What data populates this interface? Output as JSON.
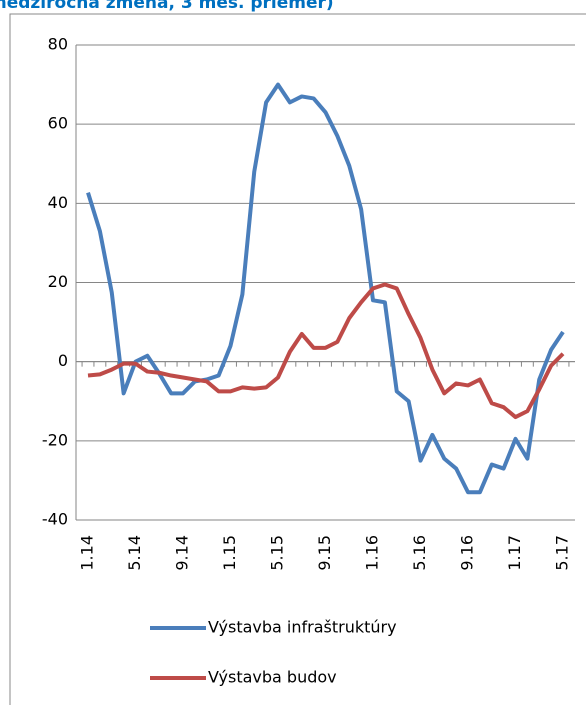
{
  "chart_data": {
    "type": "line",
    "title": "medziročná zmena, 3 mes. priemer)",
    "categories": [
      "1.14",
      null,
      null,
      null,
      "5.14",
      null,
      null,
      null,
      "9.14",
      null,
      null,
      null,
      "1.15",
      null,
      null,
      null,
      "5.15",
      null,
      null,
      null,
      "9.15",
      null,
      null,
      null,
      "1.16",
      null,
      null,
      null,
      "5.16",
      null,
      null,
      null,
      "9.16",
      null,
      null,
      null,
      "1.17",
      null,
      null,
      null,
      "5.17"
    ],
    "series": [
      {
        "name": "Výstavba infraštruktúry",
        "color": "#4a7ebb",
        "values": [
          42.7,
          33,
          17.5,
          -8,
          0,
          1.5,
          -3,
          -8,
          -8,
          -5,
          -4.5,
          -3.5,
          4,
          17,
          48,
          65.5,
          70,
          65.5,
          67,
          66.5,
          63,
          57,
          49.5,
          38.5,
          15.5,
          15,
          -7.5,
          -10,
          -25,
          -18.5,
          -24.5,
          -27,
          -33,
          -33,
          -26,
          -27,
          -19.5,
          -24.5,
          -4.5,
          3,
          7.5
        ]
      },
      {
        "name": "Výstavba budov",
        "color": "#be4b48",
        "values": [
          -3.5,
          -3.2,
          -2,
          -0.5,
          -0.5,
          -2.5,
          -2.8,
          -3.5,
          -4,
          -4.5,
          -5,
          -7.5,
          -7.5,
          -6.5,
          -6.8,
          -6.5,
          -4,
          2.5,
          7,
          3.5,
          3.5,
          5,
          11,
          15,
          18.5,
          19.5,
          18.5,
          12,
          6,
          -2,
          -8,
          -5.5,
          -6,
          -4.5,
          -10.5,
          -11.5,
          -14,
          -12.5,
          -7,
          -1,
          2
        ]
      }
    ],
    "ylim": [
      -40,
      80
    ],
    "yticks": [
      -40,
      -20,
      0,
      20,
      40,
      60,
      80
    ],
    "grid": true
  }
}
